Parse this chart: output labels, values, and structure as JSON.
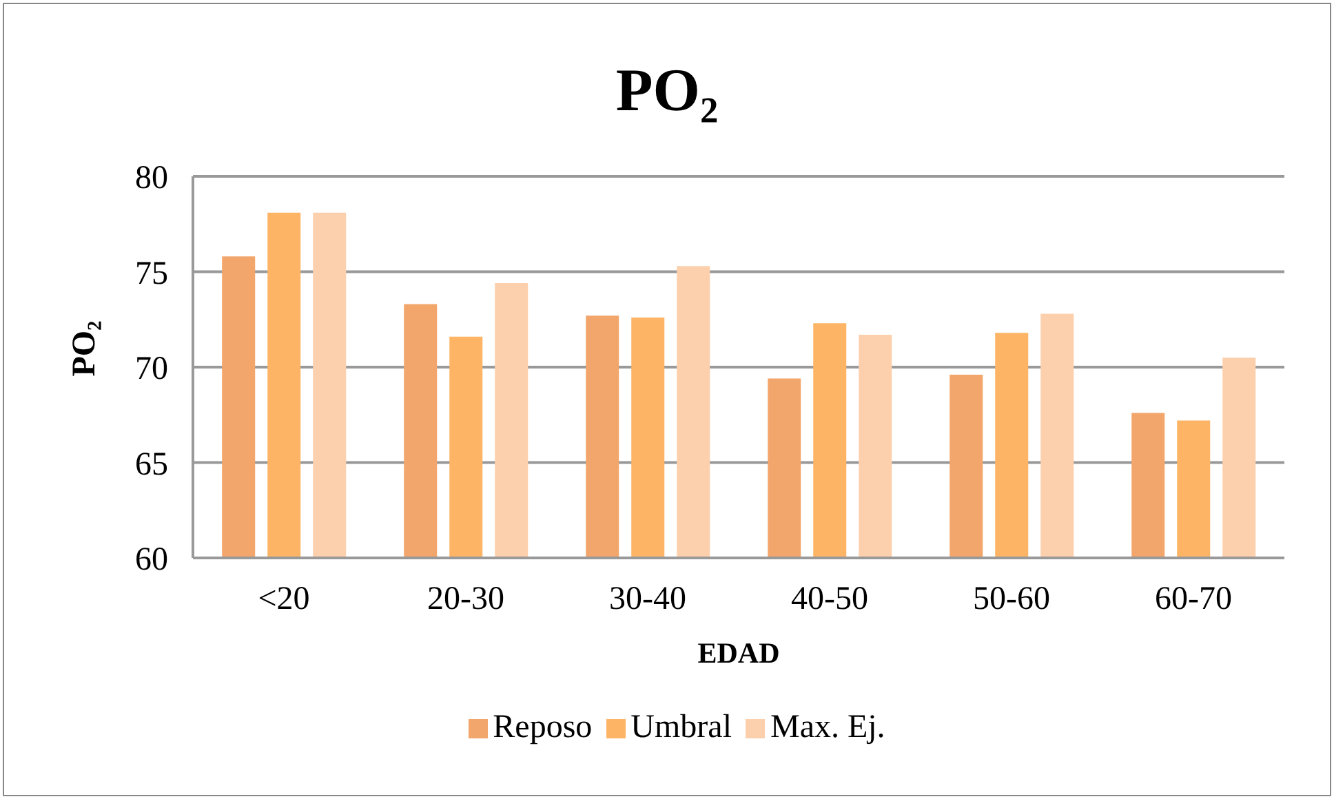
{
  "chart_data": {
    "type": "bar",
    "title": "PO₂",
    "xlabel": "EDAD",
    "ylabel": "PO₂",
    "categories": [
      "<20",
      "20-30",
      "30-40",
      "40-50",
      "50-60",
      "60-70"
    ],
    "series": [
      {
        "name": "Reposo",
        "color": "#f3a66b",
        "values": [
          75.8,
          73.3,
          72.7,
          69.4,
          69.6,
          67.6
        ]
      },
      {
        "name": "Umbral",
        "color": "#fdb565",
        "values": [
          78.1,
          71.6,
          72.6,
          72.3,
          71.8,
          67.2
        ]
      },
      {
        "name": "Max. Ej.",
        "color": "#fdd0ad",
        "values": [
          78.1,
          74.4,
          75.3,
          71.7,
          72.8,
          70.5
        ]
      }
    ],
    "ylim": [
      60,
      80
    ],
    "yticks": [
      60,
      65,
      70,
      75,
      80
    ],
    "grid": "y",
    "legend": "bottom"
  }
}
